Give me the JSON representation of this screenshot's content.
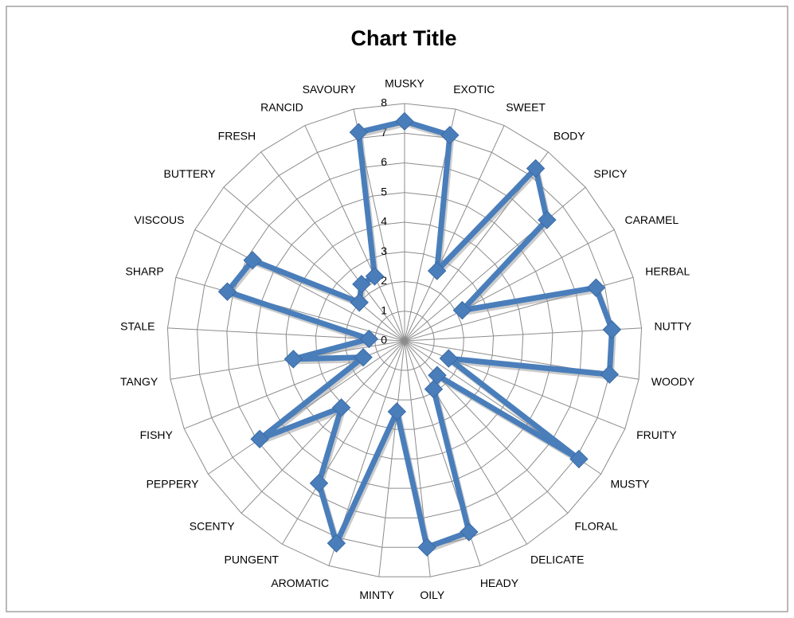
{
  "chart_data": {
    "type": "radar",
    "title": "Chart Title",
    "categories": [
      "MUSKY",
      "EXOTIC",
      "SWEET",
      "BODY",
      "SPICY",
      "CARAMEL",
      "HERBAL",
      "NUTTY",
      "WOODY",
      "FRUITY",
      "MUSTY",
      "FLORAL",
      "DELICATE",
      "HEADY",
      "OILY",
      "MINTY",
      "AROMATIC",
      "PUNGENT",
      "SCENTY",
      "PEPPERY",
      "FISHY",
      "TANGY",
      "STALE",
      "SHARP",
      "VISCOUS",
      "BUTTERY",
      "FRESH",
      "RANCID",
      "SAVOURY"
    ],
    "values": [
      7.4,
      7.1,
      2.6,
      7.3,
      6.3,
      2.2,
      6.7,
      7.0,
      7.0,
      1.6,
      7.1,
      1.6,
      1.9,
      6.8,
      7.0,
      2.4,
      7.2,
      5.6,
      3.1,
      5.9,
      1.5,
      3.8,
      1.2,
      6.2,
      5.8,
      2.0,
      2.4,
      2.4,
      7.2
    ],
    "color": "#4a7ebb",
    "ylim": [
      0,
      8
    ],
    "yticks": [
      0,
      1,
      2,
      3,
      4,
      5,
      6,
      7,
      8
    ],
    "grid": true
  }
}
